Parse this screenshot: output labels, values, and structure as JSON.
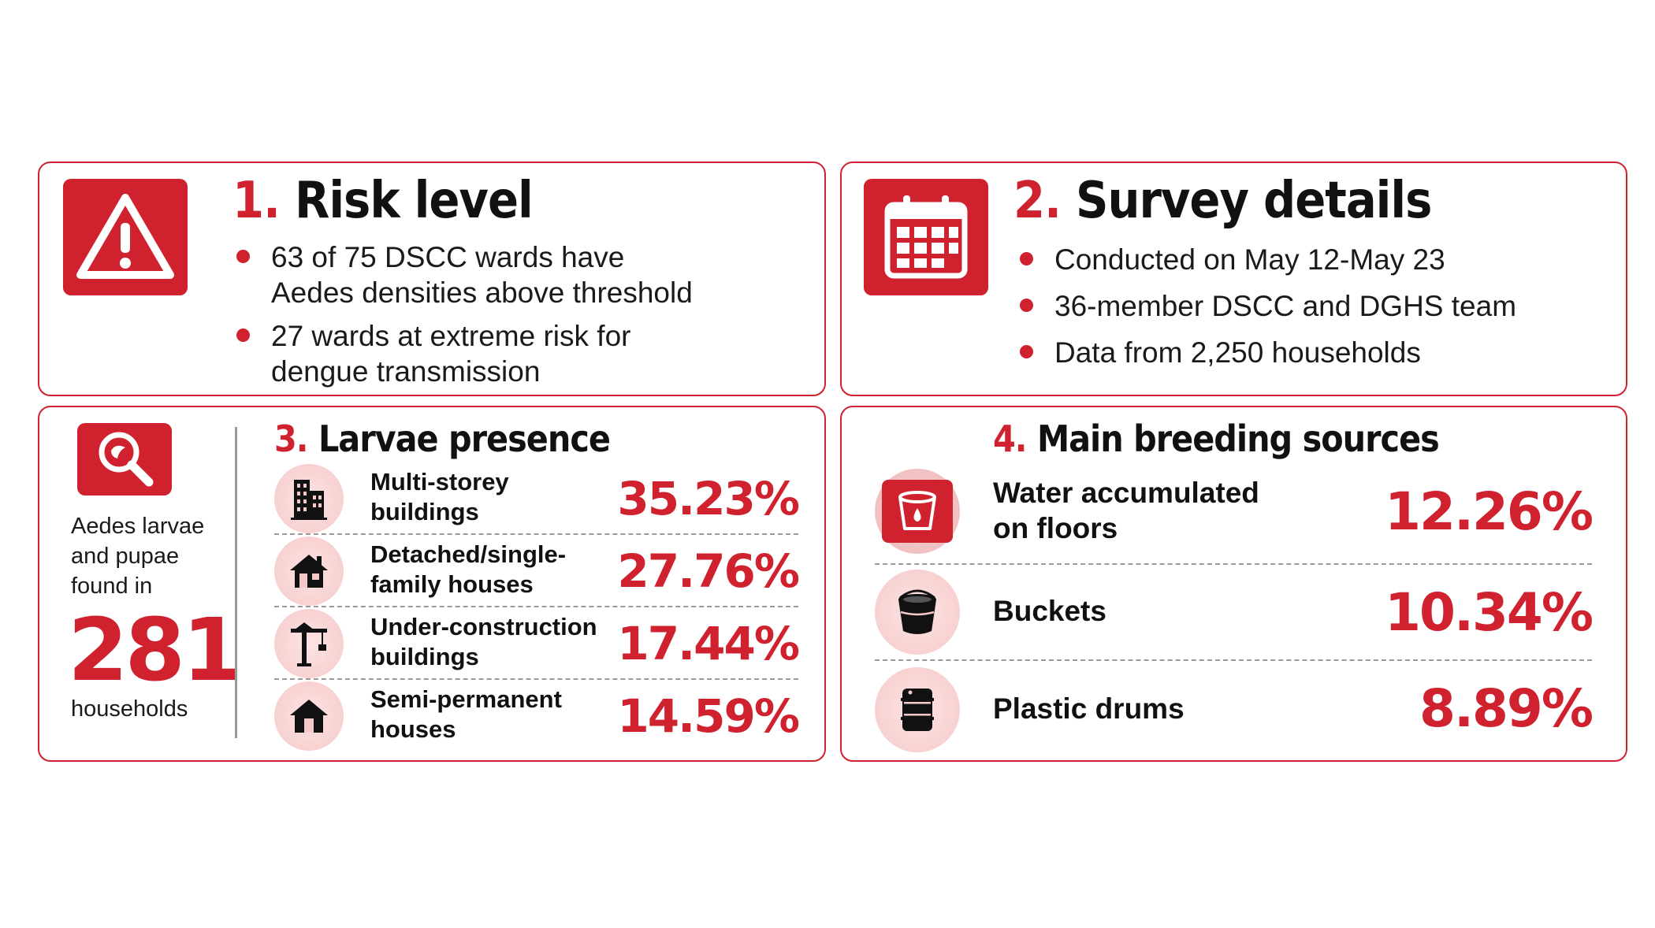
{
  "risk": {
    "num": "1.",
    "title": "Risk level",
    "bullets": [
      {
        "line1": "63 of 75 DSCC wards have",
        "line2": "Aedes densities above threshold"
      },
      {
        "line1": "27 wards at extreme risk for",
        "line2": "dengue transmission"
      }
    ],
    "icon": "warning-triangle-icon"
  },
  "survey": {
    "num": "2.",
    "title": "Survey details",
    "bullets": [
      "Conducted on May 12-May 23",
      "36-member DSCC and DGHS team",
      "Data from 2,250 households"
    ],
    "icon": "calendar-icon"
  },
  "larvae": {
    "num": "3.",
    "title": "Larvae presence",
    "caption": [
      "Aedes larvae",
      "and pupae",
      "found in"
    ],
    "count": "281",
    "count_unit": "households",
    "rows": [
      {
        "line1": "Multi-storey",
        "line2": "buildings",
        "pct": "35.23%",
        "icon": "building-icon"
      },
      {
        "line1": "Detached/single-",
        "line2": "family houses",
        "pct": "27.76%",
        "icon": "house-icon"
      },
      {
        "line1": "Under-construction",
        "line2": "buildings",
        "pct": "17.44%",
        "icon": "crane-icon"
      },
      {
        "line1": "Semi-permanent",
        "line2": "houses",
        "pct": "14.59%",
        "icon": "house-icon"
      }
    ]
  },
  "breeding": {
    "num": "4.",
    "title": "Main breeding sources",
    "rows": [
      {
        "line1": "Water accumulated",
        "line2": "on floors",
        "pct": "12.26%",
        "icon": "water-cup-icon"
      },
      {
        "line1": "Buckets",
        "pct": "10.34%",
        "icon": "bucket-icon"
      },
      {
        "line1": "Plastic drums",
        "pct": "8.89%",
        "icon": "drum-icon"
      }
    ]
  },
  "colors": {
    "accent": "#d0212f",
    "text": "#111111",
    "icon_bg": "#f5c9c9"
  }
}
